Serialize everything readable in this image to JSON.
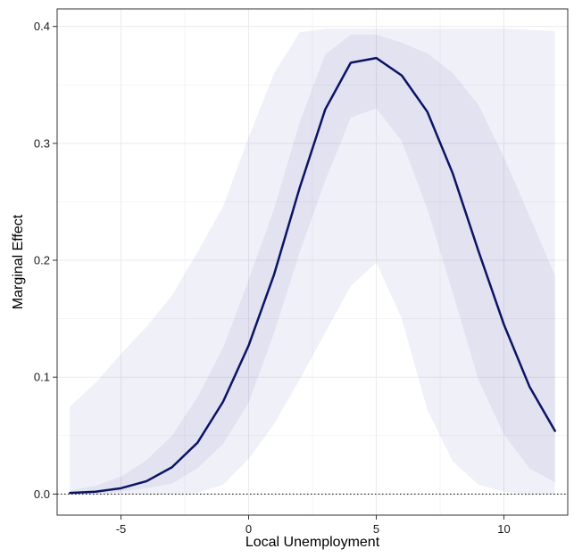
{
  "chart_data": {
    "type": "line",
    "title": "",
    "xlabel": "Local Unemployment",
    "ylabel": "Marginal Effect",
    "xlim": [
      -7.5,
      12.5
    ],
    "ylim": [
      -0.018,
      0.415
    ],
    "xticks": [
      -5,
      0,
      5,
      10
    ],
    "xtick_labels": [
      "-5",
      "0",
      "5",
      "10"
    ],
    "yticks": [
      0.0,
      0.1,
      0.2,
      0.3,
      0.4
    ],
    "ytick_labels": [
      "0.0",
      "0.1",
      "0.2",
      "0.3",
      "0.4"
    ],
    "grid": true,
    "reference_line": {
      "y": 0,
      "style": "dotted"
    },
    "x": [
      -7,
      -6,
      -5,
      -4,
      -3,
      -2,
      -1,
      0,
      1,
      2,
      3,
      4,
      5,
      6,
      7,
      8,
      9,
      10,
      11,
      12
    ],
    "series": [
      {
        "values": [
          0.001,
          0.002,
          0.005,
          0.011,
          0.023,
          0.044,
          0.079,
          0.127,
          0.188,
          0.262,
          0.329,
          0.369,
          0.373,
          0.358,
          0.327,
          0.274,
          0.208,
          0.145,
          0.092,
          0.054
        ]
      }
    ],
    "bands": [
      {
        "role": "inner",
        "lower": [
          0.0,
          0.0,
          0.002,
          0.005,
          0.009,
          0.022,
          0.043,
          0.078,
          0.138,
          0.207,
          0.268,
          0.322,
          0.33,
          0.302,
          0.244,
          0.172,
          0.098,
          0.051,
          0.022,
          0.01
        ],
        "upper": [
          0.003,
          0.007,
          0.015,
          0.029,
          0.05,
          0.083,
          0.125,
          0.183,
          0.244,
          0.318,
          0.376,
          0.393,
          0.393,
          0.386,
          0.377,
          0.36,
          0.333,
          0.288,
          0.238,
          0.187
        ]
      },
      {
        "role": "outer",
        "lower": [
          0.0,
          0.0,
          0.0,
          0.0,
          0.0,
          0.001,
          0.008,
          0.03,
          0.06,
          0.098,
          0.138,
          0.178,
          0.198,
          0.15,
          0.072,
          0.028,
          0.008,
          0.002,
          0.0,
          0.0
        ],
        "upper": [
          0.075,
          0.095,
          0.12,
          0.143,
          0.17,
          0.207,
          0.246,
          0.305,
          0.36,
          0.395,
          0.398,
          0.398,
          0.398,
          0.398,
          0.398,
          0.398,
          0.398,
          0.398,
          0.397,
          0.396
        ]
      }
    ]
  },
  "colors": {
    "line": "#0b1463",
    "band": "#3b46a0",
    "panel_background": "#ffffff",
    "grid": "#ebebeb",
    "axis": "#333333",
    "reference_line": "#000000"
  }
}
